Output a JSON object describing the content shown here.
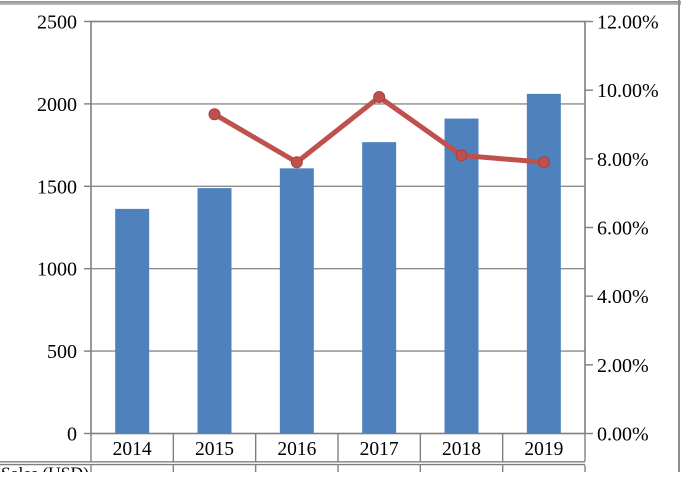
{
  "chart_data": {
    "type": "bar",
    "subtype": "bar-line-combo",
    "categories": [
      "2014",
      "2015",
      "2016",
      "2017",
      "2018",
      "2019"
    ],
    "series": [
      {
        "name": "market-size-bars",
        "type": "bar",
        "axis": "left",
        "color": "#4F81BD",
        "values": [
          1363,
          1489,
          1609,
          1768,
          1911,
          2061
        ]
      },
      {
        "name": "growth-rate-line",
        "type": "line",
        "axis": "right",
        "color": "#C0504D",
        "marker_stroke": "#A8423F",
        "values": [
          null,
          9.3,
          7.9,
          9.8,
          8.1,
          7.9
        ]
      }
    ],
    "title": "",
    "xlabel": "",
    "ylabel": "",
    "left_axis": {
      "min": 0,
      "max": 2500,
      "step": 500,
      "tick_labels": [
        "0",
        "500",
        "1000",
        "1500",
        "2000",
        "2500"
      ]
    },
    "right_axis": {
      "min": 0,
      "max": 12,
      "step": 2,
      "tick_labels": [
        "0.00%",
        "2.00%",
        "4.00%",
        "6.00%",
        "8.00%",
        "10.00%",
        "12.00%"
      ]
    },
    "grid": true,
    "legend_position": "none",
    "data_table": {
      "year_row": [
        "2014",
        "2015",
        "2016",
        "2017",
        "2018",
        "2019"
      ],
      "partial_row_label": "Sales (USD)"
    }
  },
  "colors": {
    "bar": "#4F81BD",
    "line": "#C0504D",
    "marker_stroke": "#A8423F",
    "grid": "#8c8c8c",
    "plot_border": "#7f7f7f",
    "table_border": "#7f7f7f",
    "frame": "#8d8d8d",
    "text": "#000000",
    "background": "#ffffff"
  }
}
